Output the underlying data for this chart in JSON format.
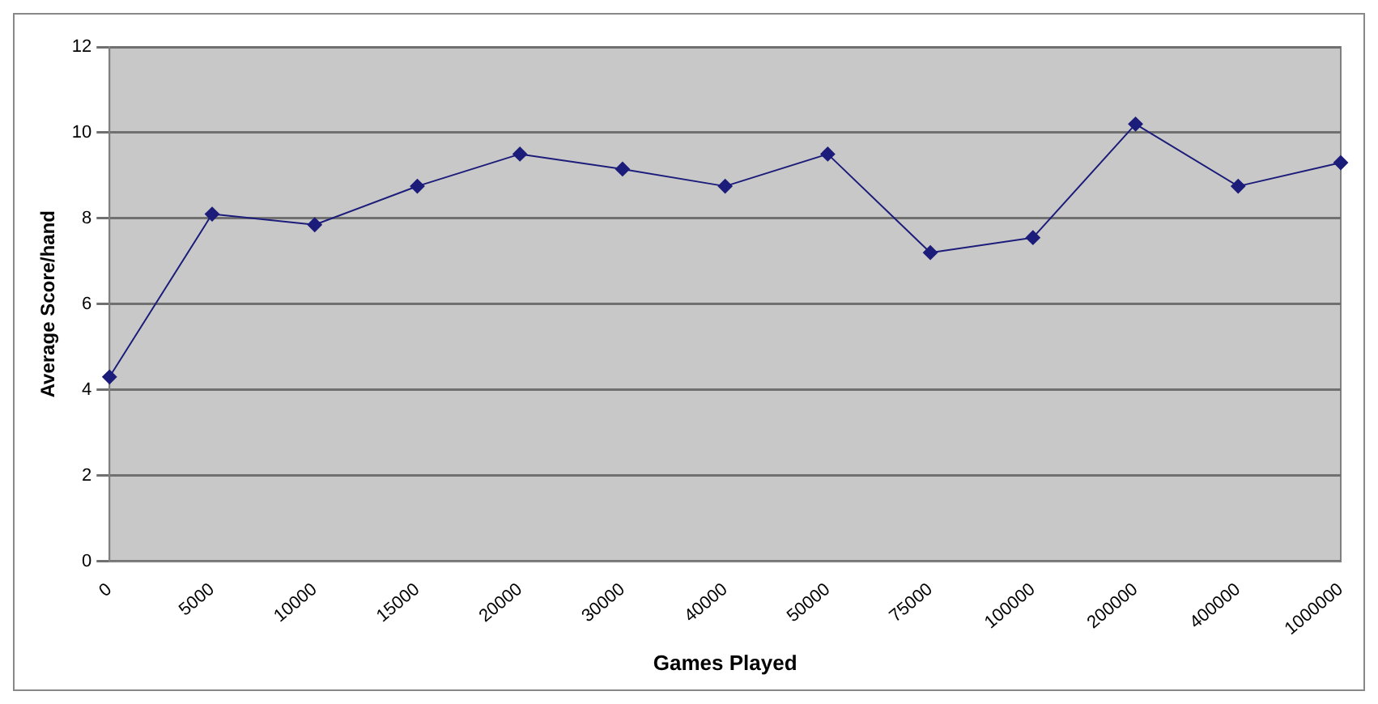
{
  "chart_data": {
    "type": "line",
    "xlabel": "Games Played",
    "ylabel": "Average Score/hand",
    "categories": [
      "0",
      "5000",
      "10000",
      "15000",
      "20000",
      "30000",
      "40000",
      "50000",
      "75000",
      "100000",
      "200000",
      "400000",
      "1000000"
    ],
    "series": [
      {
        "color": "#1c1c7a",
        "values": [
          4.3,
          8.1,
          7.85,
          8.75,
          9.5,
          9.15,
          8.75,
          9.5,
          7.2,
          7.55,
          10.2,
          8.75,
          9.3
        ]
      }
    ],
    "ylim": [
      0,
      12
    ],
    "yticks": [
      0,
      2,
      4,
      6,
      8,
      10,
      12
    ],
    "grid": "y",
    "legend": false,
    "marker": "diamond",
    "line_style": "solid"
  }
}
